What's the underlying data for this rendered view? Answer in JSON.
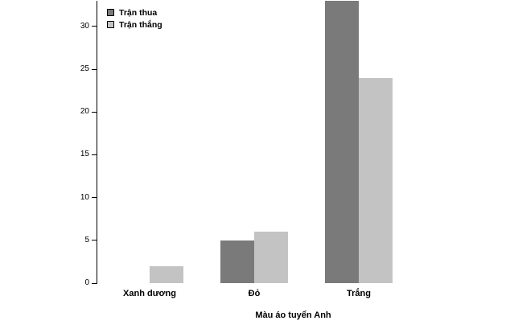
{
  "chart_data": {
    "type": "bar",
    "categories": [
      "Xanh dương",
      "Đỏ",
      "Trắng"
    ],
    "series": [
      {
        "name": "Trận thua",
        "color": "#7a7a7a",
        "values": [
          0,
          5,
          33
        ]
      },
      {
        "name": "Trận thắng",
        "color": "#c3c3c3",
        "values": [
          2,
          6,
          24
        ]
      }
    ],
    "title": "",
    "xlabel": "Màu áo tuyển Anh",
    "ylabel": "",
    "ylim": [
      0,
      33
    ],
    "yticks": [
      0,
      5,
      10,
      15,
      20,
      25,
      30
    ],
    "grid": false,
    "legend_position": "top-left"
  }
}
